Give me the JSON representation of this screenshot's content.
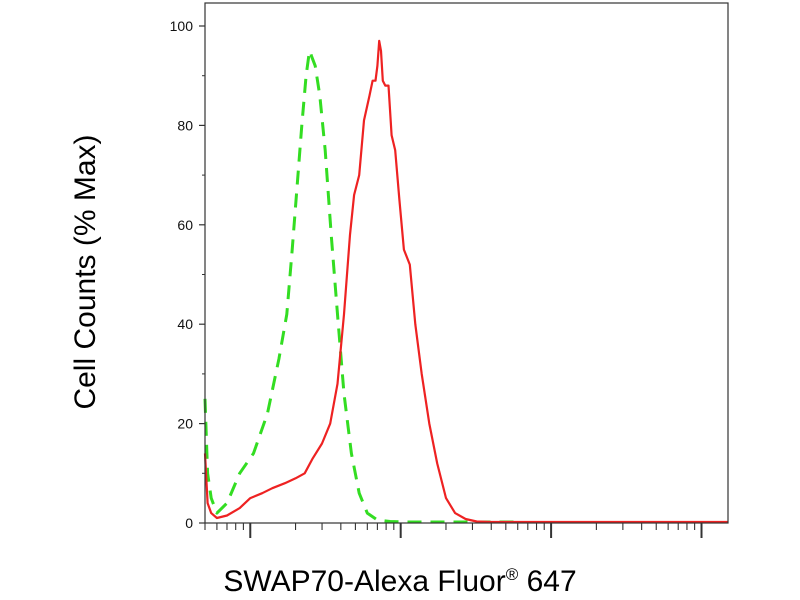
{
  "chart_data": {
    "type": "line",
    "title": "",
    "xlabel": "SWAP70-Alexa Fluor",
    "xlabel_superscript": "®",
    "xlabel_suffix": " 647",
    "ylabel": "Cell Counts (% Max)",
    "x_scale": "log",
    "xlim": [
      0.5,
      1500
    ],
    "ylim": [
      0,
      100
    ],
    "y_ticks": [
      "0",
      "20",
      "40",
      "60",
      "80",
      "100"
    ],
    "x_tick_labels": [],
    "grid": false,
    "legend": "none",
    "series": [
      {
        "color": "#33dd22",
        "line_style": "dashed",
        "x": [
          0.5,
          0.52,
          0.55,
          0.6,
          0.7,
          0.85,
          1.05,
          1.3,
          1.55,
          1.75,
          1.9,
          2.05,
          2.2,
          2.35,
          2.45,
          2.5,
          2.55,
          2.7,
          2.9,
          3.15,
          3.45,
          3.8,
          4.2,
          4.7,
          5.3,
          6.0,
          7.0,
          8.5,
          11,
          15,
          30,
          60
        ],
        "y": [
          25,
          10,
          5,
          2,
          4,
          10,
          14,
          22,
          33,
          42,
          55,
          68,
          80,
          90,
          94,
          95,
          94,
          92,
          86,
          75,
          58,
          42,
          26,
          14,
          6,
          2,
          0.6,
          0.3,
          0.2,
          0.2,
          0.2,
          0.2
        ]
      },
      {
        "color": "#ee2222",
        "line_style": "solid",
        "x": [
          0.5,
          0.52,
          0.55,
          0.6,
          0.7,
          0.85,
          1.0,
          1.2,
          1.4,
          1.7,
          2.0,
          2.3,
          2.6,
          3.0,
          3.4,
          3.8,
          4.2,
          4.6,
          4.9,
          5.3,
          5.7,
          6.0,
          6.2,
          6.5,
          6.8,
          7.0,
          7.2,
          7.4,
          7.6,
          7.9,
          8.3,
          8.7,
          9.2,
          9.8,
          10.5,
          11.5,
          12.5,
          13.8,
          15.5,
          17.5,
          20,
          23,
          27,
          32,
          40,
          60,
          100,
          300,
          1500
        ],
        "y": [
          14,
          4,
          2,
          1,
          1.5,
          3,
          5,
          6,
          7,
          8,
          9,
          10,
          13,
          16,
          20,
          28,
          42,
          58,
          66,
          70,
          81,
          84,
          86,
          89,
          89,
          92,
          97,
          95,
          89,
          88,
          88,
          78,
          75,
          65,
          55,
          52,
          40,
          30,
          20,
          12,
          5,
          2,
          0.8,
          0.3,
          0.2,
          0.2,
          0.2,
          0.2,
          0.2
        ]
      }
    ]
  }
}
